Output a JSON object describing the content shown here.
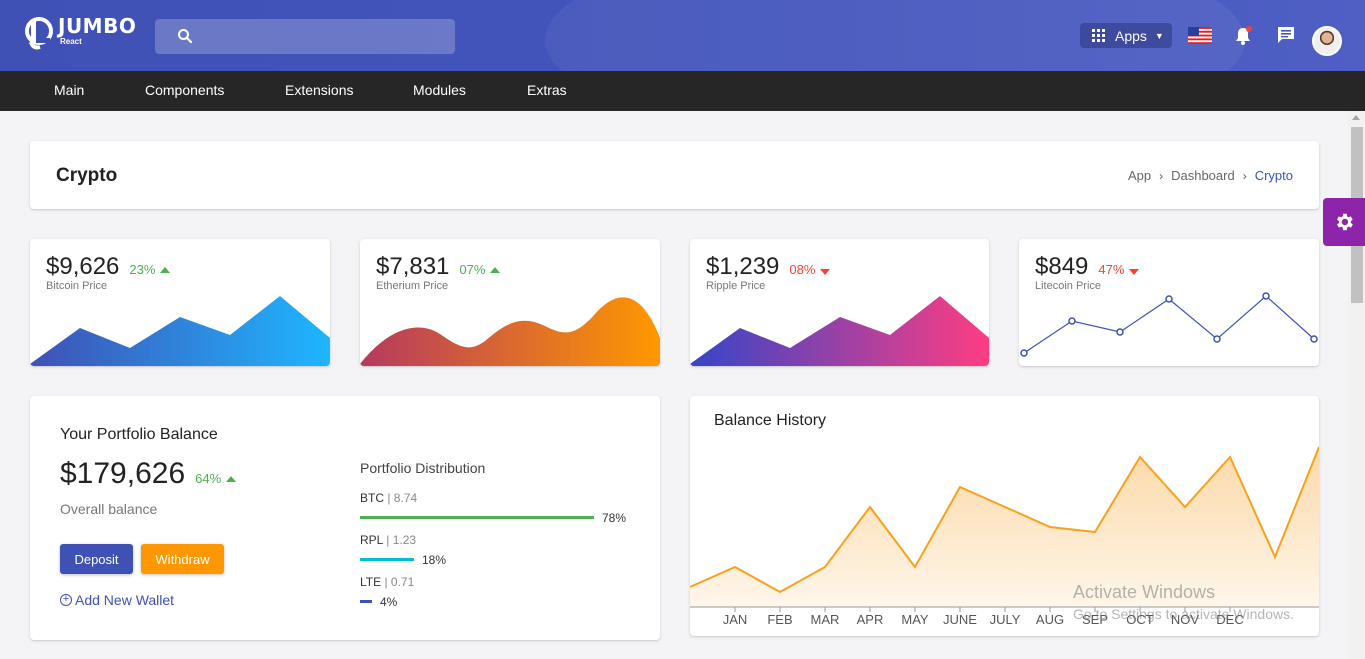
{
  "header": {
    "logo_text": "JUMBO",
    "logo_sub": "React",
    "apps_label": "Apps"
  },
  "nav": {
    "items": [
      "Main",
      "Components",
      "Extensions",
      "Modules",
      "Extras"
    ]
  },
  "page": {
    "title": "Crypto",
    "breadcrumb": [
      "App",
      "Dashboard",
      "Crypto"
    ]
  },
  "prices": [
    {
      "price": "$9,626",
      "pct": "23%",
      "trend": "up",
      "label": "Bitcoin Price",
      "colors": [
        "#3f51b5",
        "#1fb6ff"
      ]
    },
    {
      "price": "$7,831",
      "pct": "07%",
      "trend": "up",
      "label": "Etherium Price",
      "colors": [
        "#b5395f",
        "#ff9800"
      ]
    },
    {
      "price": "$1,239",
      "pct": "08%",
      "trend": "down",
      "label": "Ripple Price",
      "colors": [
        "#3545c8",
        "#ff3d82"
      ]
    },
    {
      "price": "$849",
      "pct": "47%",
      "trend": "down",
      "label": "Litecoin Price",
      "colors": [
        "#3f51b5",
        "#3f51b5"
      ]
    }
  ],
  "portfolio": {
    "title": "Your Portfolio Balance",
    "amount": "$179,626",
    "pct": "64%",
    "overall_label": "Overall balance",
    "deposit_label": "Deposit",
    "withdraw_label": "Withdraw",
    "add_wallet_label": "Add New Wallet",
    "distribution_title": "Portfolio Distribution",
    "distribution": [
      {
        "name": "BTC",
        "value": "8.74",
        "pct": "78%",
        "fraction": 0.78,
        "color": "#4caf50"
      },
      {
        "name": "RPL",
        "value": "1.23",
        "pct": "18%",
        "fraction": 0.18,
        "color": "#00bcd4"
      },
      {
        "name": "LTE",
        "value": "0.71",
        "pct": "4%",
        "fraction": 0.04,
        "color": "#3f51b5"
      }
    ]
  },
  "balance_history": {
    "title": "Balance History",
    "months": [
      "JAN",
      "FEB",
      "MAR",
      "APR",
      "MAY",
      "JUNE",
      "JULY",
      "AUG",
      "SEP",
      "OCT",
      "NOV",
      "DEC"
    ],
    "line_color": "#f7a21b"
  },
  "watermark": {
    "line1": "Activate Windows",
    "line2": "Go to Settings to activate Windows."
  },
  "colors": {
    "primary": "#3f51b5",
    "warning": "#ff9800",
    "success": "#4caf50",
    "danger": "#f44336",
    "settings": "#8e24aa"
  }
}
